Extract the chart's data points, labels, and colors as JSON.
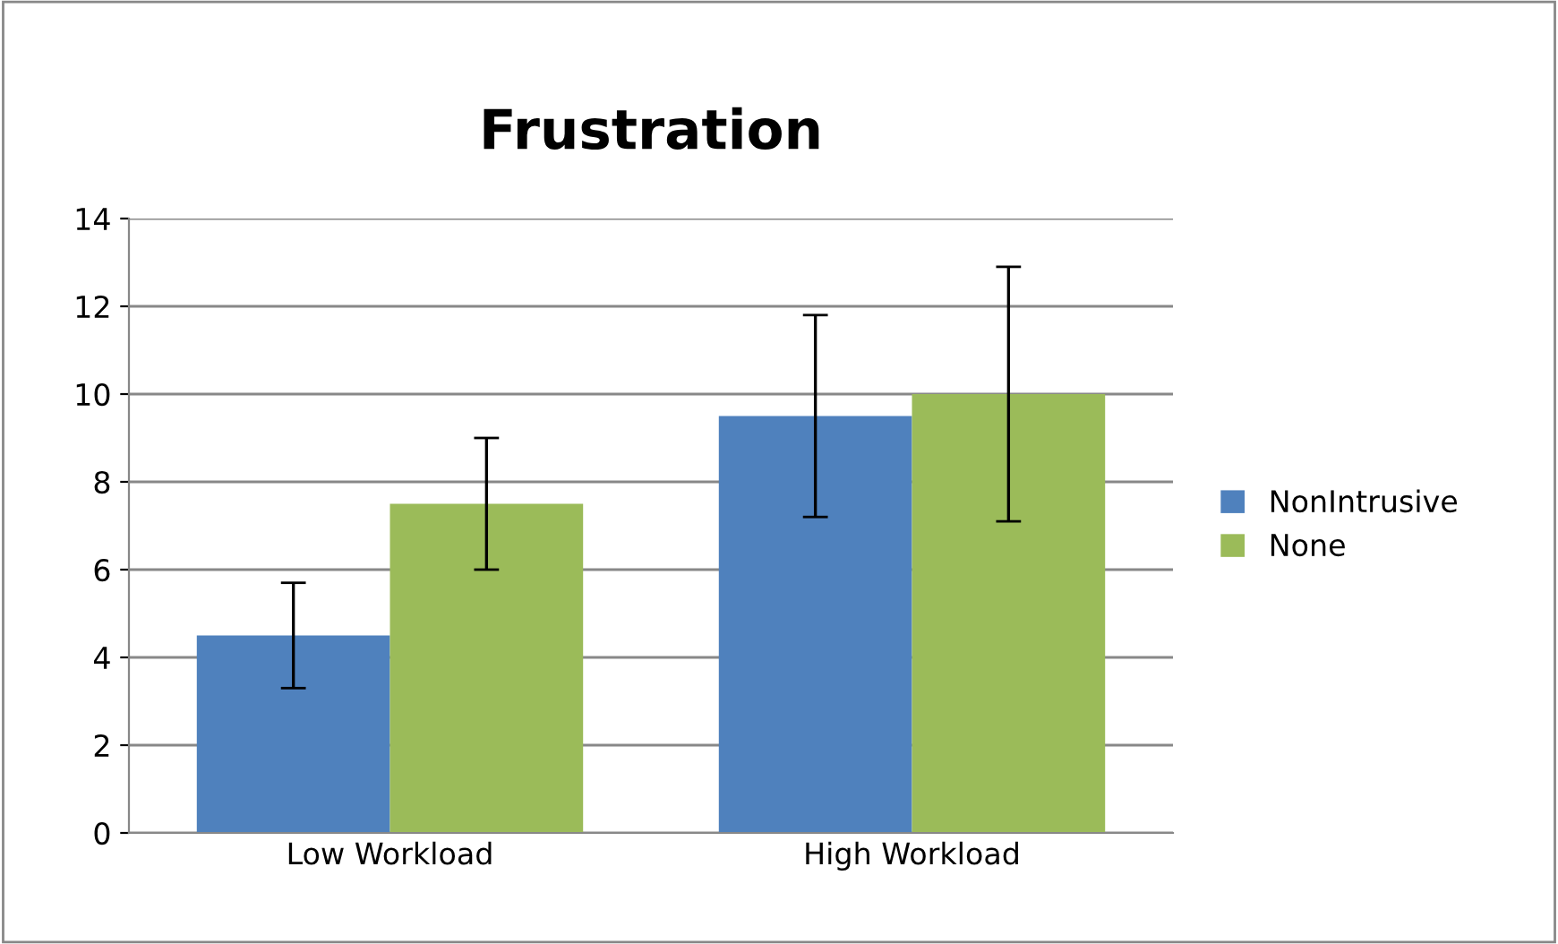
{
  "chart_data": {
    "type": "bar",
    "title": "Frustration",
    "categories": [
      "Low Workload",
      "High Workload"
    ],
    "series": [
      {
        "name": "NonIntrusive",
        "color": "#4f81bd",
        "values": [
          4.5,
          9.5
        ],
        "errors": [
          1.2,
          2.3
        ]
      },
      {
        "name": "None",
        "color": "#9bbb59",
        "values": [
          7.5,
          10
        ],
        "errors": [
          1.5,
          2.9
        ]
      }
    ],
    "ylim": [
      0,
      14
    ],
    "yticks": [
      0,
      2,
      4,
      6,
      8,
      10,
      12,
      14
    ],
    "grid": "y",
    "legend": "right"
  }
}
